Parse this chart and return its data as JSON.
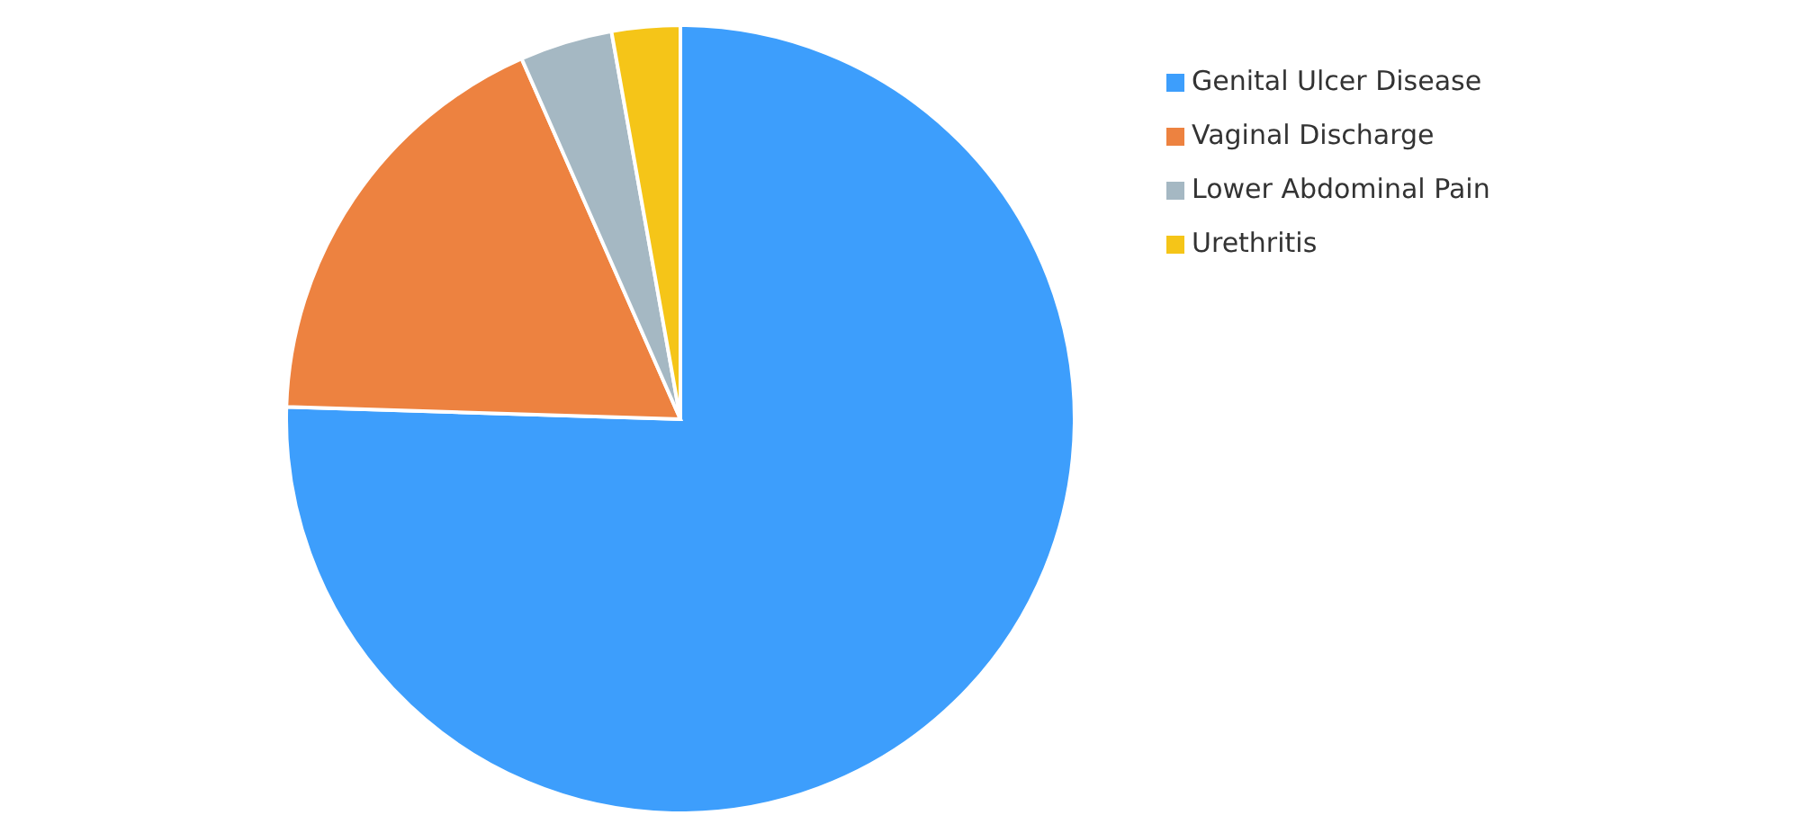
{
  "chart_data": {
    "type": "pie",
    "categories": [
      "Genital Ulcer Disease",
      "Vaginal Discharge",
      "Lower Abdominal Pain",
      "Urethritis"
    ],
    "values": [
      75.5,
      17.9,
      3.8,
      2.8
    ],
    "colors": [
      "#3d9efc",
      "#ed8240",
      "#a5b8c3",
      "#f5c518"
    ],
    "legend": "top right"
  }
}
